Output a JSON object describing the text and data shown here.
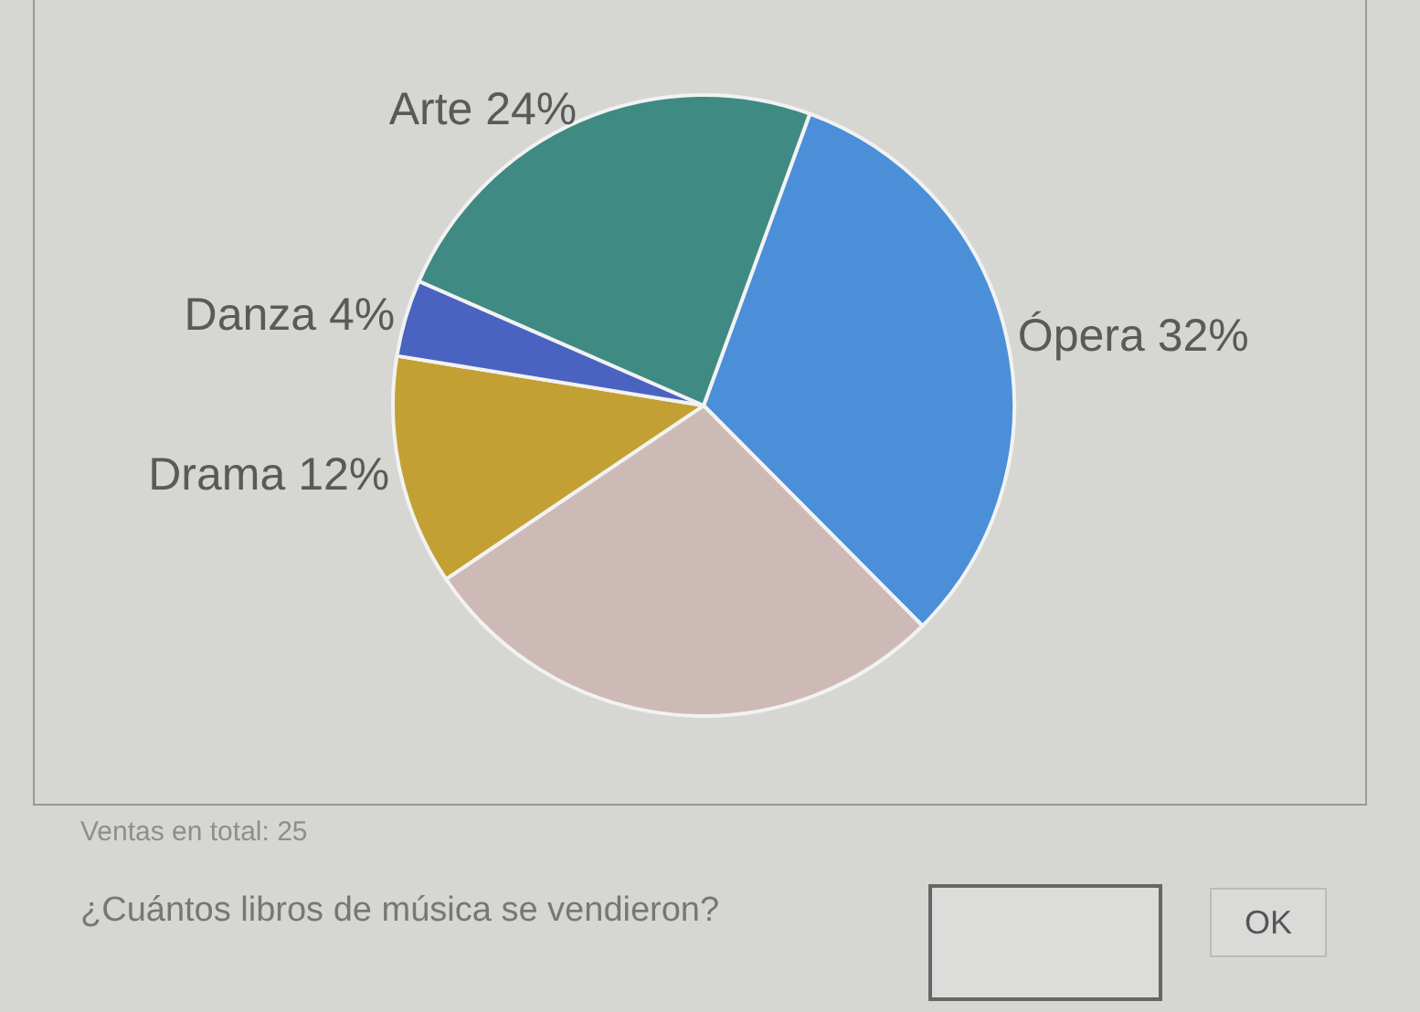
{
  "chart_data": {
    "type": "pie",
    "categories": [
      "Ópera",
      null,
      "Drama",
      "Danza",
      "Arte"
    ],
    "values": [
      32,
      28,
      12,
      4,
      24
    ],
    "colors": [
      "#4a8fd8",
      "#cdbab6",
      "#c2a034",
      "#4a63c0",
      "#3f8a82"
    ],
    "value_labels": [
      "32%",
      null,
      "12%",
      "4%",
      "24%"
    ],
    "legend": false,
    "annotations": [
      "Ventas en total: 25",
      "¿Cuántos libros de música se vendieron?",
      "OK"
    ]
  }
}
